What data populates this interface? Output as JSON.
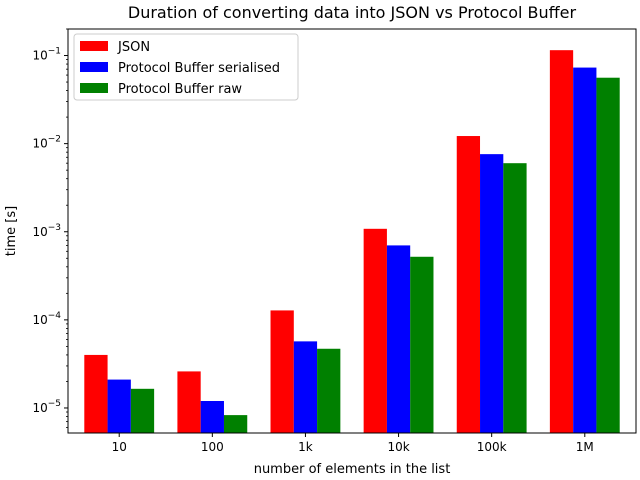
{
  "chart_data": {
    "type": "bar",
    "title": "Duration of converting data into JSON vs Protocol Buffer",
    "xlabel": "number of elements in the list",
    "ylabel": "time [s]",
    "yscale": "log",
    "ylim": [
      5.2e-06,
      0.2
    ],
    "categories": [
      "10",
      "100",
      "1k",
      "10k",
      "100k",
      "1M"
    ],
    "series": [
      {
        "name": "JSON",
        "color": "#ff0000",
        "values": [
          4e-05,
          2.6e-05,
          0.000128,
          0.00108,
          0.0122,
          0.115
        ]
      },
      {
        "name": "Protocol Buffer serialised",
        "color": "#0000ff",
        "values": [
          2.1e-05,
          1.2e-05,
          5.7e-05,
          0.0007,
          0.0076,
          0.073
        ]
      },
      {
        "name": "Protocol Buffer raw",
        "color": "#008000",
        "values": [
          1.65e-05,
          8.3e-06,
          4.7e-05,
          0.00052,
          0.006,
          0.056
        ]
      }
    ],
    "yticks": [
      {
        "value": 1e-05,
        "base": "10",
        "exp": "−5"
      },
      {
        "value": 0.0001,
        "base": "10",
        "exp": "−4"
      },
      {
        "value": 0.001,
        "base": "10",
        "exp": "−3"
      },
      {
        "value": 0.01,
        "base": "10",
        "exp": "−2"
      },
      {
        "value": 0.1,
        "base": "10",
        "exp": "−1"
      }
    ],
    "legend_position": "top-left",
    "grid": false
  }
}
